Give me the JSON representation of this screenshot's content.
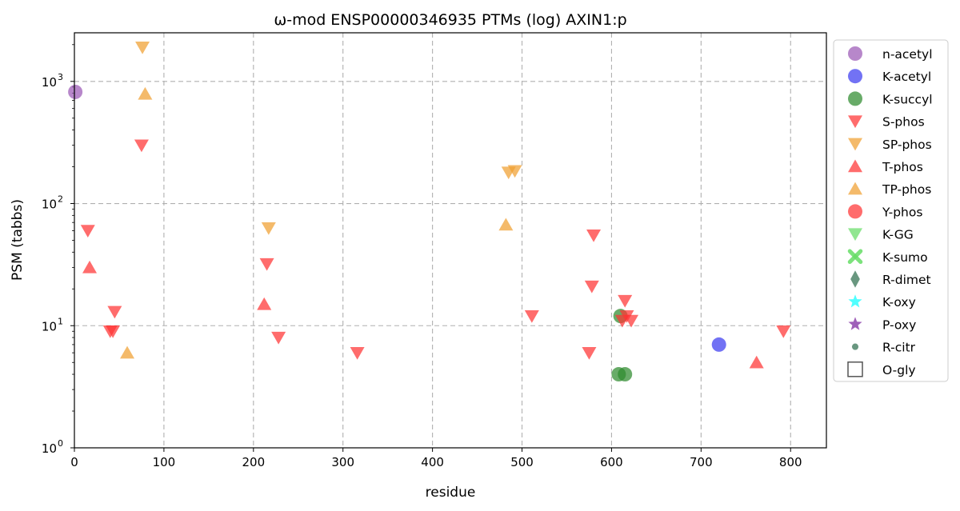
{
  "chart_data": {
    "type": "scatter",
    "title": "ω-mod ENSP00000346935 PTMs (log) AXIN1:p",
    "xlabel": "residue",
    "ylabel": "PSM (tabbs)",
    "xlim": [
      0,
      840
    ],
    "ylim": [
      1,
      2500
    ],
    "y_scale": "log",
    "grid": true,
    "legend_position": "outside-right",
    "x_ticks": [
      0,
      100,
      200,
      300,
      400,
      500,
      600,
      700,
      800
    ],
    "y_ticks": [
      {
        "value": 1,
        "base": "10",
        "exp": "0"
      },
      {
        "value": 10,
        "base": "10",
        "exp": "1"
      },
      {
        "value": 100,
        "base": "10",
        "exp": "2"
      },
      {
        "value": 1000,
        "base": "10",
        "exp": "3"
      }
    ],
    "series": [
      {
        "name": "n-acetyl",
        "marker": "circle",
        "color": "#9b59b6",
        "points": [
          [
            1,
            820
          ]
        ]
      },
      {
        "name": "K-acetyl",
        "marker": "circle",
        "color": "#3b3bf0",
        "points": [
          [
            720,
            7
          ]
        ]
      },
      {
        "name": "K-succyl",
        "marker": "circle",
        "color": "#2e8b2e",
        "points": [
          [
            610,
            12
          ],
          [
            608,
            4
          ],
          [
            615,
            4
          ]
        ]
      },
      {
        "name": "S-phos",
        "marker": "triangle-down",
        "color": "#ff3333",
        "points": [
          [
            15,
            60
          ],
          [
            75,
            300
          ],
          [
            45,
            13
          ],
          [
            40,
            9
          ],
          [
            43,
            9
          ],
          [
            215,
            32
          ],
          [
            228,
            8
          ],
          [
            316,
            6
          ],
          [
            511,
            12
          ],
          [
            580,
            55
          ],
          [
            578,
            21
          ],
          [
            575,
            6
          ],
          [
            615,
            16
          ],
          [
            612,
            11
          ],
          [
            617,
            12
          ],
          [
            622,
            11
          ],
          [
            792,
            9
          ]
        ]
      },
      {
        "name": "SP-phos",
        "marker": "triangle-down",
        "color": "#f0a030",
        "points": [
          [
            76,
            1900
          ],
          [
            217,
            63
          ],
          [
            485,
            180
          ],
          [
            492,
            185
          ]
        ]
      },
      {
        "name": "T-phos",
        "marker": "triangle-up",
        "color": "#ff3333",
        "points": [
          [
            17,
            30
          ],
          [
            212,
            15
          ],
          [
            762,
            5
          ]
        ]
      },
      {
        "name": "TP-phos",
        "marker": "triangle-up",
        "color": "#f0a030",
        "points": [
          [
            79,
            790
          ],
          [
            482,
            67
          ],
          [
            59,
            6
          ]
        ]
      },
      {
        "name": "Y-phos",
        "marker": "circle",
        "color": "#ff3333",
        "points": []
      },
      {
        "name": "K-GG",
        "marker": "triangle-down",
        "color": "#66dd66",
        "points": []
      },
      {
        "name": "K-sumo",
        "marker": "x",
        "color": "#66dd66",
        "points": []
      },
      {
        "name": "R-dimet",
        "marker": "diamond",
        "color": "#2f6f4f",
        "points": []
      },
      {
        "name": "K-oxy",
        "marker": "star",
        "color": "#33ffff",
        "points": []
      },
      {
        "name": "P-oxy",
        "marker": "star",
        "color": "#8e44ad",
        "points": []
      },
      {
        "name": "R-citr",
        "marker": "small-circle",
        "color": "#2f6f4f",
        "points": []
      },
      {
        "name": "O-gly",
        "marker": "square-open",
        "color": "#555555",
        "points": []
      }
    ]
  }
}
